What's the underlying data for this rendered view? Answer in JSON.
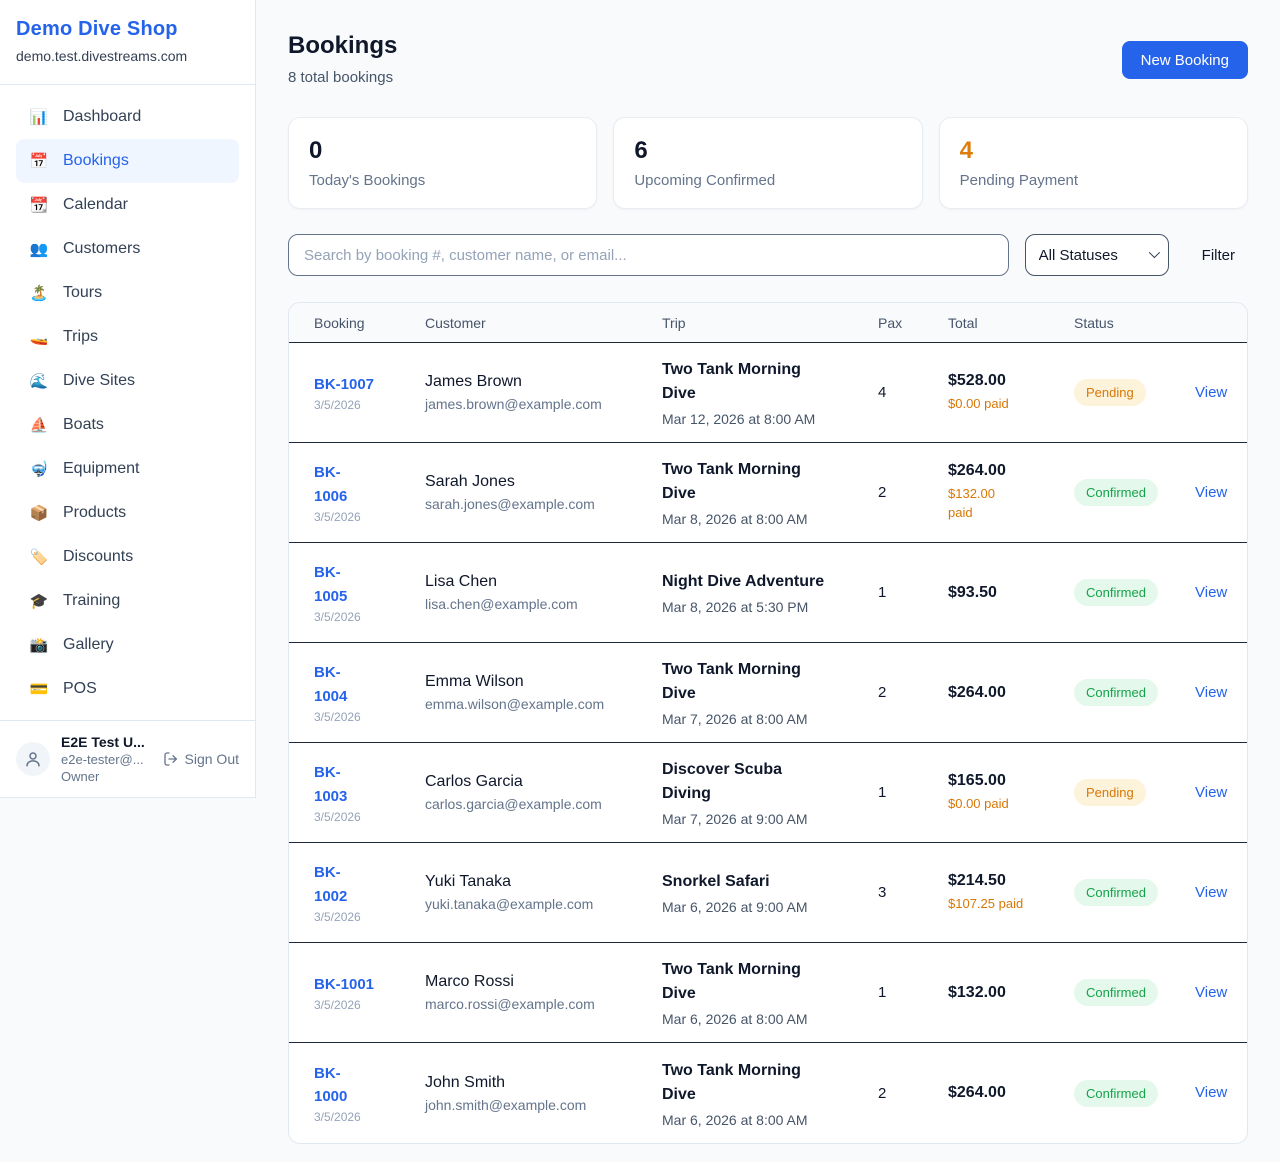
{
  "colors": {
    "accent_blue": "#2563eb",
    "pending_orange": "#d97706",
    "stat_accent_orange": "#dd7c0e",
    "confirmed_green": "#16a34a",
    "pending_badge_bg": "#fdf3da",
    "confirmed_badge_bg": "#e4f8ec",
    "page_bg": "#f8fafc"
  },
  "sidebar": {
    "brand": {
      "name": "Demo Dive Shop",
      "domain": "demo.test.divestreams.com"
    },
    "nav": [
      {
        "label": "Dashboard",
        "icon": "📊",
        "icon_name": "bar-chart-icon",
        "active": false
      },
      {
        "label": "Bookings",
        "icon": "📅",
        "icon_name": "calendar-icon",
        "active": true
      },
      {
        "label": "Calendar",
        "icon": "📆",
        "icon_name": "tear-calendar-icon",
        "active": false
      },
      {
        "label": "Customers",
        "icon": "👥",
        "icon_name": "people-icon",
        "active": false
      },
      {
        "label": "Tours",
        "icon": "🏝️",
        "icon_name": "island-icon",
        "active": false
      },
      {
        "label": "Trips",
        "icon": "🚤",
        "icon_name": "speedboat-icon",
        "active": false
      },
      {
        "label": "Dive Sites",
        "icon": "🌊",
        "icon_name": "wave-icon",
        "active": false
      },
      {
        "label": "Boats",
        "icon": "⛵",
        "icon_name": "sailboat-icon",
        "active": false
      },
      {
        "label": "Equipment",
        "icon": "🤿",
        "icon_name": "diving-mask-icon",
        "active": false
      },
      {
        "label": "Products",
        "icon": "📦",
        "icon_name": "package-icon",
        "active": false
      },
      {
        "label": "Discounts",
        "icon": "🏷️",
        "icon_name": "tag-icon",
        "active": false
      },
      {
        "label": "Training",
        "icon": "🎓",
        "icon_name": "graduation-cap-icon",
        "active": false
      },
      {
        "label": "Gallery",
        "icon": "📸",
        "icon_name": "camera-icon",
        "active": false
      },
      {
        "label": "POS",
        "icon": "💳",
        "icon_name": "credit-card-icon",
        "active": false
      }
    ],
    "user": {
      "name": "E2E Test U...",
      "email": "e2e-tester@...",
      "role": "Owner",
      "sign_out_label": "Sign Out"
    }
  },
  "header": {
    "title": "Bookings",
    "subtitle": "8 total bookings",
    "new_booking_label": "New Booking"
  },
  "stats": [
    {
      "value": "0",
      "label": "Today's Bookings"
    },
    {
      "value": "6",
      "label": "Upcoming Confirmed"
    },
    {
      "value": "4",
      "label": "Pending Payment"
    }
  ],
  "filters": {
    "search_placeholder": "Search by booking #, customer name, or email...",
    "status_select_value": "All Statuses",
    "filter_label": "Filter"
  },
  "table": {
    "headers": [
      "Booking",
      "Customer",
      "Trip",
      "Pax",
      "Total",
      "Status"
    ],
    "view_label": "View",
    "rows": [
      {
        "id_lines": [
          "BK-1007"
        ],
        "date": "3/5/2026",
        "customer": "James Brown",
        "email": "james.brown@example.com",
        "trip_lines": [
          "Two Tank Morning",
          "Dive"
        ],
        "trip_date": "Mar 12, 2026 at 8:00 AM",
        "pax": "4",
        "total": "$528.00",
        "paid_lines": [
          "$0.00 paid"
        ],
        "status": "Pending"
      },
      {
        "id_lines": [
          "BK-",
          "1006"
        ],
        "date": "3/5/2026",
        "customer": "Sarah Jones",
        "email": "sarah.jones@example.com",
        "trip_lines": [
          "Two Tank Morning",
          "Dive"
        ],
        "trip_date": "Mar 8, 2026 at 8:00 AM",
        "pax": "2",
        "total": "$264.00",
        "paid_lines": [
          "$132.00",
          "paid"
        ],
        "status": "Confirmed"
      },
      {
        "id_lines": [
          "BK-",
          "1005"
        ],
        "date": "3/5/2026",
        "customer": "Lisa Chen",
        "email": "lisa.chen@example.com",
        "trip_lines": [
          "Night Dive Adventure"
        ],
        "trip_date": "Mar 8, 2026 at 5:30 PM",
        "pax": "1",
        "total": "$93.50",
        "paid_lines": [],
        "status": "Confirmed"
      },
      {
        "id_lines": [
          "BK-",
          "1004"
        ],
        "date": "3/5/2026",
        "customer": "Emma Wilson",
        "email": "emma.wilson@example.com",
        "trip_lines": [
          "Two Tank Morning",
          "Dive"
        ],
        "trip_date": "Mar 7, 2026 at 8:00 AM",
        "pax": "2",
        "total": "$264.00",
        "paid_lines": [],
        "status": "Confirmed"
      },
      {
        "id_lines": [
          "BK-",
          "1003"
        ],
        "date": "3/5/2026",
        "customer": "Carlos Garcia",
        "email": "carlos.garcia@example.com",
        "trip_lines": [
          "Discover Scuba",
          "Diving"
        ],
        "trip_date": "Mar 7, 2026 at 9:00 AM",
        "pax": "1",
        "total": "$165.00",
        "paid_lines": [
          "$0.00 paid"
        ],
        "status": "Pending"
      },
      {
        "id_lines": [
          "BK-",
          "1002"
        ],
        "date": "3/5/2026",
        "customer": "Yuki Tanaka",
        "email": "yuki.tanaka@example.com",
        "trip_lines": [
          "Snorkel Safari"
        ],
        "trip_date": "Mar 6, 2026 at 9:00 AM",
        "pax": "3",
        "total": "$214.50",
        "paid_lines": [
          "$107.25 paid"
        ],
        "status": "Confirmed"
      },
      {
        "id_lines": [
          "BK-1001"
        ],
        "date": "3/5/2026",
        "customer": "Marco Rossi",
        "email": "marco.rossi@example.com",
        "trip_lines": [
          "Two Tank Morning",
          "Dive"
        ],
        "trip_date": "Mar 6, 2026 at 8:00 AM",
        "pax": "1",
        "total": "$132.00",
        "paid_lines": [],
        "status": "Confirmed"
      },
      {
        "id_lines": [
          "BK-",
          "1000"
        ],
        "date": "3/5/2026",
        "customer": "John Smith",
        "email": "john.smith@example.com",
        "trip_lines": [
          "Two Tank Morning",
          "Dive"
        ],
        "trip_date": "Mar 6, 2026 at 8:00 AM",
        "pax": "2",
        "total": "$264.00",
        "paid_lines": [],
        "status": "Confirmed"
      }
    ]
  }
}
